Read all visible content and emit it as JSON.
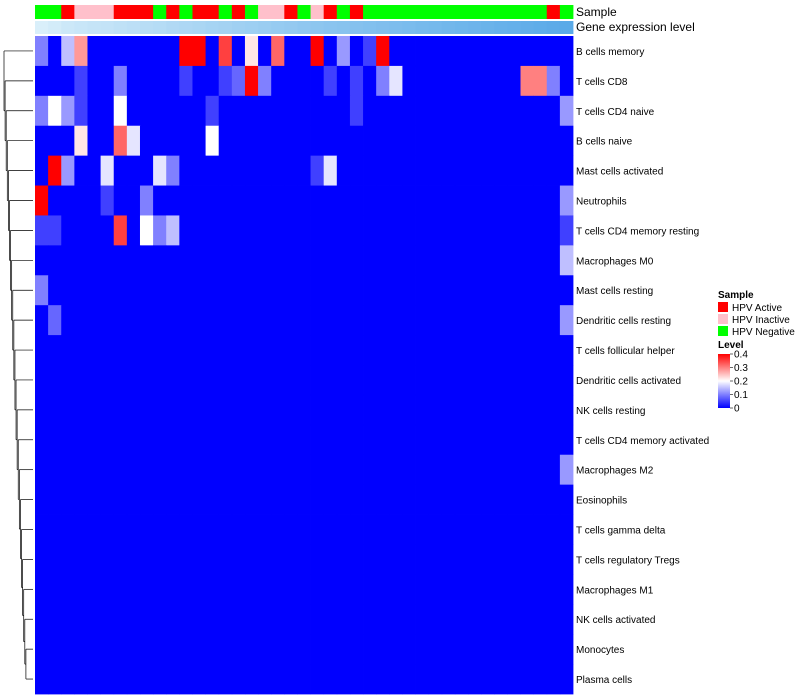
{
  "chart_data": {
    "type": "heatmap",
    "title": "",
    "annotation_labels": {
      "sample": "Sample",
      "gene": "Gene expression level"
    },
    "samples": [
      "HPV Negative",
      "HPV Negative",
      "HPV Active",
      "HPV Inactive",
      "HPV Inactive",
      "HPV Inactive",
      "HPV Active",
      "HPV Active",
      "HPV Active",
      "HPV Negative",
      "HPV Active",
      "HPV Negative",
      "HPV Active",
      "HPV Active",
      "HPV Negative",
      "HPV Active",
      "HPV Negative",
      "HPV Inactive",
      "HPV Inactive",
      "HPV Active",
      "HPV Negative",
      "HPV Inactive",
      "HPV Active",
      "HPV Negative",
      "HPV Active",
      "HPV Negative",
      "HPV Negative",
      "HPV Negative",
      "HPV Negative",
      "HPV Negative",
      "HPV Negative",
      "HPV Negative",
      "HPV Negative",
      "HPV Negative",
      "HPV Negative",
      "HPV Negative",
      "HPV Negative",
      "HPV Negative",
      "HPV Negative",
      "HPV Active",
      "HPV Negative"
    ],
    "gene_expression": [
      0.05,
      0.1,
      0.15,
      0.18,
      0.2,
      0.22,
      0.25,
      0.27,
      0.3,
      0.32,
      0.35,
      0.38,
      0.4,
      0.43,
      0.45,
      0.48,
      0.5,
      0.52,
      0.55,
      0.57,
      0.6,
      0.62,
      0.64,
      0.66,
      0.68,
      0.7,
      0.72,
      0.74,
      0.76,
      0.78,
      0.8,
      0.82,
      0.84,
      0.86,
      0.88,
      0.9,
      0.92,
      0.94,
      0.96,
      0.98,
      1.0
    ],
    "rows": [
      "B cells memory",
      "T cells CD8",
      "T cells CD4 naive",
      "B cells naive",
      "Mast cells activated",
      "Neutrophils",
      "T cells CD4 memory resting",
      "Macrophages M0",
      "Mast cells resting",
      "Dendritic cells resting",
      "T cells follicular helper",
      "Dendritic cells activated",
      "NK cells resting",
      "T cells CD4 memory activated",
      "Macrophages M2",
      "Eosinophils",
      "T cells gamma delta",
      "T cells regulatory  Tregs",
      "Macrophages M1",
      "NK cells activated",
      "Monocytes",
      "Plasma cells"
    ],
    "values": [
      [
        0.1,
        0.0,
        0.15,
        0.28,
        0.0,
        0.0,
        0.0,
        0.0,
        0.0,
        0.0,
        0.0,
        0.4,
        0.4,
        0.0,
        0.35,
        0.0,
        0.22,
        0.0,
        0.32,
        0.0,
        0.0,
        0.4,
        0.0,
        0.12,
        0.0,
        0.05,
        0.4,
        0.0,
        0.0,
        0.0,
        0.0,
        0.0,
        0.0,
        0.0,
        0.0,
        0.0,
        0.0,
        0.0,
        0.0,
        0.0,
        0.0
      ],
      [
        0.0,
        0.0,
        0.0,
        0.05,
        0.0,
        0.0,
        0.1,
        0.0,
        0.0,
        0.0,
        0.0,
        0.05,
        0.0,
        0.0,
        0.05,
        0.08,
        0.4,
        0.1,
        0.0,
        0.0,
        0.0,
        0.0,
        0.05,
        0.0,
        0.05,
        0.0,
        0.1,
        0.18,
        0.0,
        0.0,
        0.0,
        0.0,
        0.0,
        0.0,
        0.0,
        0.0,
        0.0,
        0.3,
        0.3,
        0.1,
        0.0
      ],
      [
        0.1,
        0.2,
        0.12,
        0.05,
        0.0,
        0.0,
        0.2,
        0.0,
        0.0,
        0.0,
        0.0,
        0.0,
        0.0,
        0.05,
        0.0,
        0.0,
        0.0,
        0.0,
        0.0,
        0.0,
        0.0,
        0.0,
        0.0,
        0.0,
        0.05,
        0.0,
        0.0,
        0.0,
        0.0,
        0.0,
        0.0,
        0.0,
        0.0,
        0.0,
        0.0,
        0.0,
        0.0,
        0.0,
        0.0,
        0.0,
        0.12
      ],
      [
        0.0,
        0.0,
        0.0,
        0.22,
        0.0,
        0.0,
        0.32,
        0.18,
        0.0,
        0.0,
        0.0,
        0.0,
        0.0,
        0.2,
        0.0,
        0.0,
        0.0,
        0.0,
        0.0,
        0.0,
        0.0,
        0.0,
        0.0,
        0.0,
        0.0,
        0.0,
        0.0,
        0.0,
        0.0,
        0.0,
        0.0,
        0.0,
        0.0,
        0.0,
        0.0,
        0.0,
        0.0,
        0.0,
        0.0,
        0.0,
        0.0
      ],
      [
        0.0,
        0.4,
        0.12,
        0.0,
        0.0,
        0.18,
        0.0,
        0.0,
        0.0,
        0.18,
        0.1,
        0.0,
        0.0,
        0.0,
        0.0,
        0.0,
        0.0,
        0.0,
        0.0,
        0.0,
        0.0,
        0.05,
        0.18,
        0.0,
        0.0,
        0.0,
        0.0,
        0.0,
        0.0,
        0.0,
        0.0,
        0.0,
        0.0,
        0.0,
        0.0,
        0.0,
        0.0,
        0.0,
        0.0,
        0.0,
        0.0
      ],
      [
        0.4,
        0.0,
        0.0,
        0.0,
        0.0,
        0.05,
        0.0,
        0.0,
        0.1,
        0.0,
        0.0,
        0.0,
        0.0,
        0.0,
        0.0,
        0.0,
        0.0,
        0.0,
        0.0,
        0.0,
        0.0,
        0.0,
        0.0,
        0.0,
        0.0,
        0.0,
        0.0,
        0.0,
        0.0,
        0.0,
        0.0,
        0.0,
        0.0,
        0.0,
        0.0,
        0.0,
        0.0,
        0.0,
        0.0,
        0.0,
        0.12
      ],
      [
        0.05,
        0.05,
        0.0,
        0.0,
        0.0,
        0.0,
        0.35,
        0.0,
        0.2,
        0.1,
        0.15,
        0.0,
        0.0,
        0.0,
        0.0,
        0.0,
        0.0,
        0.0,
        0.0,
        0.0,
        0.0,
        0.0,
        0.0,
        0.0,
        0.0,
        0.0,
        0.0,
        0.0,
        0.0,
        0.0,
        0.0,
        0.0,
        0.0,
        0.0,
        0.0,
        0.0,
        0.0,
        0.0,
        0.0,
        0.0,
        0.05
      ],
      [
        0.0,
        0.0,
        0.0,
        0.0,
        0.0,
        0.0,
        0.0,
        0.0,
        0.0,
        0.0,
        0.0,
        0.0,
        0.0,
        0.0,
        0.0,
        0.0,
        0.0,
        0.0,
        0.0,
        0.0,
        0.0,
        0.0,
        0.0,
        0.0,
        0.0,
        0.0,
        0.0,
        0.0,
        0.0,
        0.0,
        0.0,
        0.0,
        0.0,
        0.0,
        0.0,
        0.0,
        0.0,
        0.0,
        0.0,
        0.0,
        0.15
      ],
      [
        0.1,
        0.0,
        0.0,
        0.0,
        0.0,
        0.0,
        0.0,
        0.0,
        0.0,
        0.0,
        0.0,
        0.0,
        0.0,
        0.0,
        0.0,
        0.0,
        0.0,
        0.0,
        0.0,
        0.0,
        0.0,
        0.0,
        0.0,
        0.0,
        0.0,
        0.0,
        0.0,
        0.0,
        0.0,
        0.0,
        0.0,
        0.0,
        0.0,
        0.0,
        0.0,
        0.0,
        0.0,
        0.0,
        0.0,
        0.0,
        0.0
      ],
      [
        0.0,
        0.08,
        0.0,
        0.0,
        0.0,
        0.0,
        0.0,
        0.0,
        0.0,
        0.0,
        0.0,
        0.0,
        0.0,
        0.0,
        0.0,
        0.0,
        0.0,
        0.0,
        0.0,
        0.0,
        0.0,
        0.0,
        0.0,
        0.0,
        0.0,
        0.0,
        0.0,
        0.0,
        0.0,
        0.0,
        0.0,
        0.0,
        0.0,
        0.0,
        0.0,
        0.0,
        0.0,
        0.0,
        0.0,
        0.0,
        0.12
      ],
      [
        0.0,
        0.0,
        0.0,
        0.0,
        0.0,
        0.0,
        0.0,
        0.0,
        0.0,
        0.0,
        0.0,
        0.0,
        0.0,
        0.0,
        0.0,
        0.0,
        0.0,
        0.0,
        0.0,
        0.0,
        0.0,
        0.0,
        0.0,
        0.0,
        0.0,
        0.0,
        0.0,
        0.0,
        0.0,
        0.0,
        0.0,
        0.0,
        0.0,
        0.0,
        0.0,
        0.0,
        0.0,
        0.0,
        0.0,
        0.0,
        0.0
      ],
      [
        0.0,
        0.0,
        0.0,
        0.0,
        0.0,
        0.0,
        0.0,
        0.0,
        0.0,
        0.0,
        0.0,
        0.0,
        0.0,
        0.0,
        0.0,
        0.0,
        0.0,
        0.0,
        0.0,
        0.0,
        0.0,
        0.0,
        0.0,
        0.0,
        0.0,
        0.0,
        0.0,
        0.0,
        0.0,
        0.0,
        0.0,
        0.0,
        0.0,
        0.0,
        0.0,
        0.0,
        0.0,
        0.0,
        0.0,
        0.0,
        0.0
      ],
      [
        0.0,
        0.0,
        0.0,
        0.0,
        0.0,
        0.0,
        0.0,
        0.0,
        0.0,
        0.0,
        0.0,
        0.0,
        0.0,
        0.0,
        0.0,
        0.0,
        0.0,
        0.0,
        0.0,
        0.0,
        0.0,
        0.0,
        0.0,
        0.0,
        0.0,
        0.0,
        0.0,
        0.0,
        0.0,
        0.0,
        0.0,
        0.0,
        0.0,
        0.0,
        0.0,
        0.0,
        0.0,
        0.0,
        0.0,
        0.0,
        0.0
      ],
      [
        0.0,
        0.0,
        0.0,
        0.0,
        0.0,
        0.0,
        0.0,
        0.0,
        0.0,
        0.0,
        0.0,
        0.0,
        0.0,
        0.0,
        0.0,
        0.0,
        0.0,
        0.0,
        0.0,
        0.0,
        0.0,
        0.0,
        0.0,
        0.0,
        0.0,
        0.0,
        0.0,
        0.0,
        0.0,
        0.0,
        0.0,
        0.0,
        0.0,
        0.0,
        0.0,
        0.0,
        0.0,
        0.0,
        0.0,
        0.0,
        0.0
      ],
      [
        0.0,
        0.0,
        0.0,
        0.0,
        0.0,
        0.0,
        0.0,
        0.0,
        0.0,
        0.0,
        0.0,
        0.0,
        0.0,
        0.0,
        0.0,
        0.0,
        0.0,
        0.0,
        0.0,
        0.0,
        0.0,
        0.0,
        0.0,
        0.0,
        0.0,
        0.0,
        0.0,
        0.0,
        0.0,
        0.0,
        0.0,
        0.0,
        0.0,
        0.0,
        0.0,
        0.0,
        0.0,
        0.0,
        0.0,
        0.0,
        0.12
      ],
      [
        0.0,
        0.0,
        0.0,
        0.0,
        0.0,
        0.0,
        0.0,
        0.0,
        0.0,
        0.0,
        0.0,
        0.0,
        0.0,
        0.0,
        0.0,
        0.0,
        0.0,
        0.0,
        0.0,
        0.0,
        0.0,
        0.0,
        0.0,
        0.0,
        0.0,
        0.0,
        0.0,
        0.0,
        0.0,
        0.0,
        0.0,
        0.0,
        0.0,
        0.0,
        0.0,
        0.0,
        0.0,
        0.0,
        0.0,
        0.0,
        0.0
      ],
      [
        0.0,
        0.0,
        0.0,
        0.0,
        0.0,
        0.0,
        0.0,
        0.0,
        0.0,
        0.0,
        0.0,
        0.0,
        0.0,
        0.0,
        0.0,
        0.0,
        0.0,
        0.0,
        0.0,
        0.0,
        0.0,
        0.0,
        0.0,
        0.0,
        0.0,
        0.0,
        0.0,
        0.0,
        0.0,
        0.0,
        0.0,
        0.0,
        0.0,
        0.0,
        0.0,
        0.0,
        0.0,
        0.0,
        0.0,
        0.0,
        0.0
      ],
      [
        0.0,
        0.0,
        0.0,
        0.0,
        0.0,
        0.0,
        0.0,
        0.0,
        0.0,
        0.0,
        0.0,
        0.0,
        0.0,
        0.0,
        0.0,
        0.0,
        0.0,
        0.0,
        0.0,
        0.0,
        0.0,
        0.0,
        0.0,
        0.0,
        0.0,
        0.0,
        0.0,
        0.0,
        0.0,
        0.0,
        0.0,
        0.0,
        0.0,
        0.0,
        0.0,
        0.0,
        0.0,
        0.0,
        0.0,
        0.0,
        0.0
      ],
      [
        0.0,
        0.0,
        0.0,
        0.0,
        0.0,
        0.0,
        0.0,
        0.0,
        0.0,
        0.0,
        0.0,
        0.0,
        0.0,
        0.0,
        0.0,
        0.0,
        0.0,
        0.0,
        0.0,
        0.0,
        0.0,
        0.0,
        0.0,
        0.0,
        0.0,
        0.0,
        0.0,
        0.0,
        0.0,
        0.0,
        0.0,
        0.0,
        0.0,
        0.0,
        0.0,
        0.0,
        0.0,
        0.0,
        0.0,
        0.0,
        0.0
      ],
      [
        0.0,
        0.0,
        0.0,
        0.0,
        0.0,
        0.0,
        0.0,
        0.0,
        0.0,
        0.0,
        0.0,
        0.0,
        0.0,
        0.0,
        0.0,
        0.0,
        0.0,
        0.0,
        0.0,
        0.0,
        0.0,
        0.0,
        0.0,
        0.0,
        0.0,
        0.0,
        0.0,
        0.0,
        0.0,
        0.0,
        0.0,
        0.0,
        0.0,
        0.0,
        0.0,
        0.0,
        0.0,
        0.0,
        0.0,
        0.0,
        0.0
      ],
      [
        0.0,
        0.0,
        0.0,
        0.0,
        0.0,
        0.0,
        0.0,
        0.0,
        0.0,
        0.0,
        0.0,
        0.0,
        0.0,
        0.0,
        0.0,
        0.0,
        0.0,
        0.0,
        0.0,
        0.0,
        0.0,
        0.0,
        0.0,
        0.0,
        0.0,
        0.0,
        0.0,
        0.0,
        0.0,
        0.0,
        0.0,
        0.0,
        0.0,
        0.0,
        0.0,
        0.0,
        0.0,
        0.0,
        0.0,
        0.0,
        0.0
      ],
      [
        0.0,
        0.0,
        0.0,
        0.0,
        0.0,
        0.0,
        0.0,
        0.0,
        0.0,
        0.0,
        0.0,
        0.0,
        0.0,
        0.0,
        0.0,
        0.0,
        0.0,
        0.0,
        0.0,
        0.0,
        0.0,
        0.0,
        0.0,
        0.0,
        0.0,
        0.0,
        0.0,
        0.0,
        0.0,
        0.0,
        0.0,
        0.0,
        0.0,
        0.0,
        0.0,
        0.0,
        0.0,
        0.0,
        0.0,
        0.0,
        0.0
      ]
    ],
    "color_scale": {
      "title": "Level",
      "min": 0,
      "max": 0.4,
      "ticks": [
        0.4,
        0.3,
        0.2,
        0.1,
        0
      ],
      "low_color": "#0000ff",
      "mid_color": "#ffffff",
      "high_color": "#ff0000",
      "mid_value": 0.2
    },
    "legend": {
      "title": "Sample",
      "placement": "right",
      "entries": [
        {
          "label": "HPV Active",
          "color": "#ff0000"
        },
        {
          "label": "HPV Inactive",
          "color": "#ffc0cb"
        },
        {
          "label": "HPV Negative",
          "color": "#00ff00"
        }
      ]
    },
    "gene_colors": {
      "low": "#e0f3fb",
      "high": "#5aaae8"
    }
  }
}
